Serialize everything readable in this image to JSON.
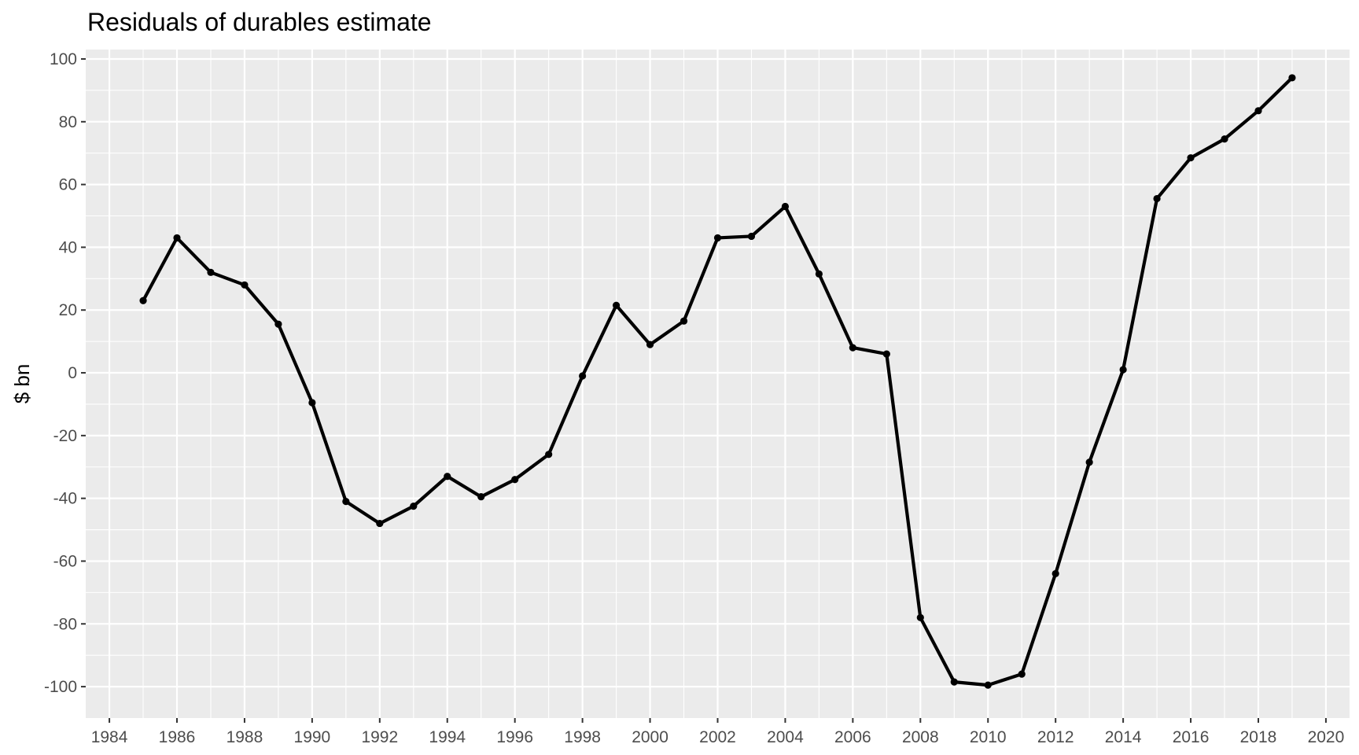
{
  "chart_data": {
    "type": "line",
    "title": "Residuals of durables estimate",
    "xlabel": "",
    "ylabel": "$ bn",
    "xlim": [
      1983.3,
      2020.7
    ],
    "ylim": [
      -110,
      103
    ],
    "x_ticks": [
      1984,
      1986,
      1988,
      1990,
      1992,
      1994,
      1996,
      1998,
      2000,
      2002,
      2004,
      2006,
      2008,
      2010,
      2012,
      2014,
      2016,
      2018,
      2020
    ],
    "x_tick_labels": [
      "1984",
      "1986",
      "1988",
      "1990",
      "1992",
      "1994",
      "1996",
      "1998",
      "2000",
      "2002",
      "2004",
      "2006",
      "2008",
      "2010",
      "2012",
      "2014",
      "2016",
      "2018",
      "2020"
    ],
    "y_ticks": [
      100,
      80,
      60,
      40,
      20,
      0,
      -20,
      -40,
      -60,
      -80,
      -100
    ],
    "y_tick_labels": [
      "100",
      "80",
      "60",
      "40",
      "20",
      "0",
      "-20",
      "-40",
      "-60",
      "-80",
      "-100"
    ],
    "grid": true,
    "series": [
      {
        "color": "#000000",
        "x": [
          1985,
          1986,
          1987,
          1988,
          1989,
          1990,
          1991,
          1992,
          1993,
          1994,
          1995,
          1996,
          1997,
          1998,
          1999,
          2000,
          2001,
          2002,
          2003,
          2004,
          2005,
          2006,
          2007,
          2008,
          2009,
          2010,
          2011,
          2012,
          2013,
          2014,
          2015,
          2016,
          2017,
          2018,
          2019
        ],
        "values": [
          23,
          43,
          32,
          28,
          15.5,
          -9.5,
          -41,
          -48,
          -42.5,
          -33,
          -39.5,
          -34,
          -26,
          -1,
          21.5,
          9,
          16.5,
          43,
          43.5,
          53,
          31.5,
          8,
          6,
          -78,
          -98.5,
          -99.5,
          -96,
          -64,
          -28.5,
          1,
          55.5,
          68.5,
          74.5,
          83.5,
          94
        ]
      }
    ],
    "colors": {
      "panel": "#ebebeb",
      "grid": "#ffffff",
      "line": "#000000",
      "tick_label": "#4d4d4d"
    }
  }
}
